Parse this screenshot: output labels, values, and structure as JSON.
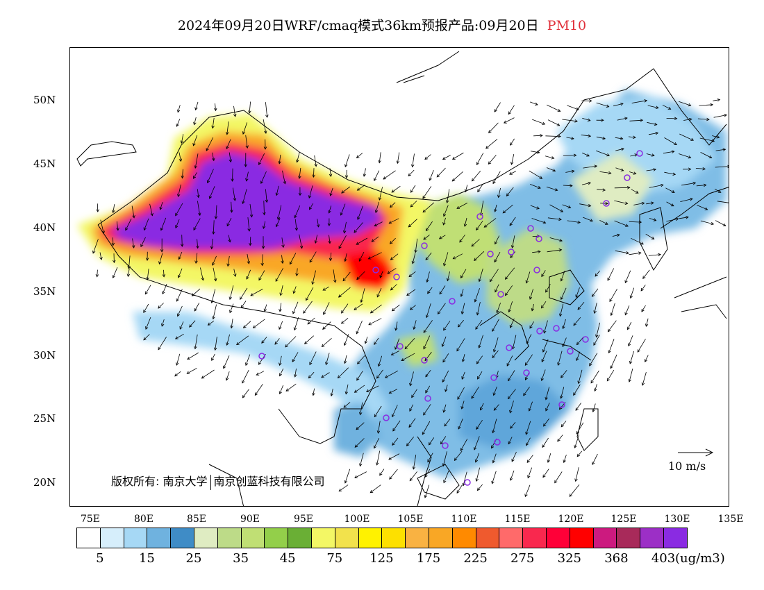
{
  "title": {
    "text": "2024年09月20日WRF/cmaq模式36km预报产品:09月20日",
    "pollutant": "PM10",
    "pollutant_color": "#e0303a"
  },
  "axes": {
    "lat_labels": [
      "50N",
      "45N",
      "40N",
      "35N",
      "30N",
      "25N",
      "20N"
    ],
    "lon_labels": [
      "75E",
      "80E",
      "85E",
      "90E",
      "95E",
      "100E",
      "105E",
      "110E",
      "115E",
      "120E",
      "125E",
      "130E",
      "135E"
    ]
  },
  "copyright": {
    "prefix": "版权所有:",
    "org1": "南京大学",
    "org2": "南京创蓝科技有限公司"
  },
  "wind_legend": {
    "label": "10 m/s"
  },
  "colorbar": {
    "colors": [
      "#ffffff",
      "#d6eefb",
      "#a6d8f5",
      "#6fb2df",
      "#3f8cc6",
      "#dfecc2",
      "#bddb88",
      "#c0df74",
      "#93cf4a",
      "#6aaf35",
      "#f3f765",
      "#f2e24c",
      "#fff200",
      "#fde000",
      "#f9b242",
      "#f9a725",
      "#ff8a00",
      "#ef5a2e",
      "#ff6a6a",
      "#f9284e",
      "#ff0038",
      "#ff0000",
      "#cc1a7f",
      "#a82a5a",
      "#9c2fc6",
      "#8a2be2"
    ],
    "labels": [
      "5",
      "15",
      "25",
      "35",
      "45",
      "75",
      "125",
      "175",
      "225",
      "275",
      "325",
      "368",
      "403"
    ],
    "unit": "(ug/m3)"
  }
}
